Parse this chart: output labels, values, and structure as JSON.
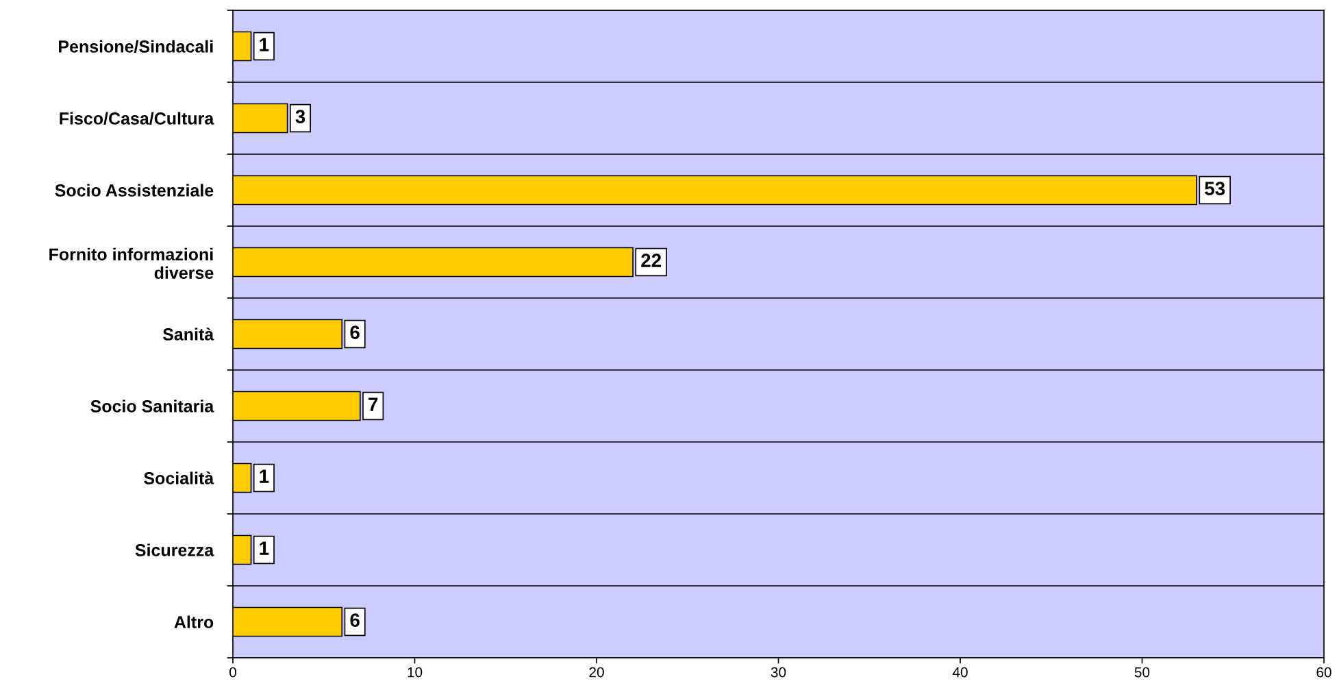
{
  "chart_data": {
    "type": "bar",
    "orientation": "horizontal",
    "categories": [
      "Pensione/Sindacali",
      "Fisco/Casa/Cultura",
      "Socio Assistenziale",
      "Fornito informazioni\ndiverse",
      "Sanità",
      "Socio Sanitaria",
      "Socialità",
      "Sicurezza",
      "Altro"
    ],
    "values": [
      1,
      3,
      53,
      22,
      6,
      7,
      1,
      1,
      6
    ],
    "color": "#ffcc00",
    "xlim": [
      0,
      60
    ],
    "xticks": [
      0,
      10,
      20,
      30,
      40,
      50,
      60
    ],
    "grid": "y",
    "data_labels": true,
    "legend": false
  }
}
